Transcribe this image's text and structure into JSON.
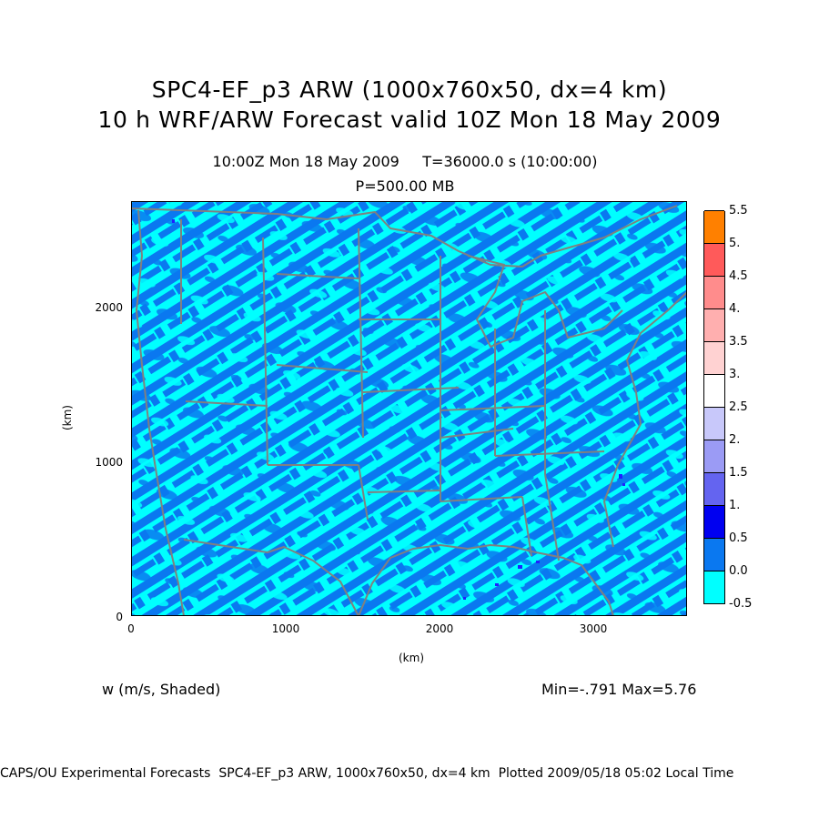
{
  "header": {
    "title_line1": "SPC4-EF_p3 ARW (1000x760x50, dx=4 km)",
    "title_line2": "10 h WRF/ARW Forecast valid 10Z Mon 18 May 2009",
    "time_line": "10:00Z Mon 18 May 2009     T=36000.0 s (10:00:00)",
    "level_line": "P=500.00 MB"
  },
  "map": {
    "x_axis_label": "(km)",
    "y_axis_label": "(km)",
    "x_ticks": [
      "0",
      "1000",
      "2000",
      "3000"
    ],
    "y_ticks": [
      "0",
      "1000",
      "2000"
    ],
    "x_range_km": [
      0,
      3600
    ],
    "y_range_km": [
      0,
      2700
    ],
    "colors": {
      "background_field": "#00ffff",
      "pattern_field": "#0a78f0",
      "boundaries": "#808080",
      "strong_updraft": "#2020ff"
    }
  },
  "legend": {
    "levels": [
      "-0.5",
      "0.0",
      "0.5",
      "1.",
      "1.5",
      "2.",
      "2.5",
      "3.",
      "3.5",
      "4.",
      "4.5",
      "5.",
      "5.5"
    ],
    "colors": [
      "#00ffff",
      "#0a78f0",
      "#0000f0",
      "#6464f0",
      "#9b9bf5",
      "#c8c8fa",
      "#ffffff",
      "#ffd2d2",
      "#ffafaf",
      "#ff8c8c",
      "#ff5a5a",
      "#ff0000",
      "#ff8000"
    ]
  },
  "footer": {
    "variable_label": "w (m/s, Shaded)",
    "minmax": "Min=-.791 Max=5.76",
    "credits": "CAPS/OU Experimental Forecasts  SPC4-EF_p3 ARW, 1000x760x50, dx=4 km  Plotted 2009/05/18 05:02 Local Time"
  }
}
